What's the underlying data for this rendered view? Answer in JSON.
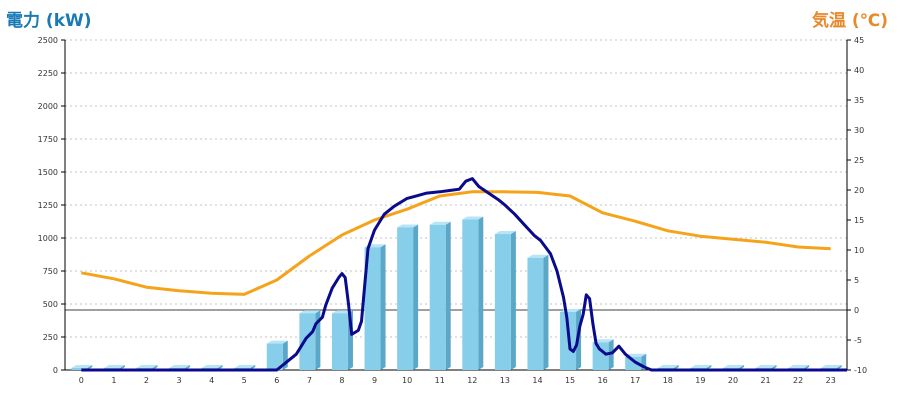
{
  "left_axis_title": "電力 (kW)",
  "right_axis_title": "気温 (℃)",
  "colors": {
    "left_title": "#1a7ab5",
    "right_title": "#e8892a",
    "bar_front": "#87ceeb",
    "bar_side": "#5aa7c8",
    "bar_top": "#b8e4f5",
    "power_line": "#0a0a8c",
    "temp_line": "#f5a31a",
    "grid": "#b0b0b0",
    "axis": "#000000"
  },
  "chart_data": {
    "type": "bar",
    "categories": [
      "0",
      "1",
      "2",
      "3",
      "4",
      "5",
      "6",
      "7",
      "8",
      "9",
      "10",
      "11",
      "12",
      "13",
      "14",
      "15",
      "16",
      "17",
      "18",
      "19",
      "20",
      "21",
      "22",
      "23"
    ],
    "ylim_left": [
      0,
      2500
    ],
    "yticks_left": [
      "0",
      "250",
      "500",
      "750",
      "1000",
      "1250",
      "1500",
      "1750",
      "2000",
      "2250",
      "2500"
    ],
    "ylim_right": [
      -10,
      45
    ],
    "yticks_right": [
      "-10",
      "-5",
      "0",
      "5",
      "10",
      "15",
      "20",
      "25",
      "30",
      "35",
      "40",
      "45"
    ],
    "grid": true,
    "bars": [
      0,
      0,
      0,
      0,
      0,
      0,
      200,
      430,
      430,
      930,
      1080,
      1100,
      1140,
      1030,
      850,
      440,
      210,
      100,
      0,
      0,
      0,
      0,
      0,
      0
    ],
    "power_line": {
      "x": [
        0,
        5.0,
        5.2,
        5.6,
        6.0,
        6.3,
        6.6,
        6.9,
        7.1,
        7.2,
        7.4,
        7.5,
        7.7,
        7.9,
        8.0,
        8.1,
        8.2,
        8.3,
        8.5,
        8.6,
        8.8,
        9.0,
        9.3,
        9.6,
        10.0,
        10.3,
        10.6,
        11.0,
        11.3,
        11.6,
        11.8,
        12.0,
        12.2,
        12.5,
        12.8,
        13.0,
        13.3,
        13.6,
        13.9,
        14.1,
        14.4,
        14.6,
        14.8,
        14.9,
        15.0,
        15.1,
        15.2,
        15.3,
        15.4,
        15.5,
        15.6,
        15.7,
        15.8,
        15.9,
        16.0,
        16.1,
        16.3,
        16.5,
        16.7,
        17.0,
        17.3,
        17.5,
        18.0,
        23.5
      ],
      "y": [
        0,
        0,
        0,
        0,
        0,
        60,
        120,
        240,
        290,
        350,
        400,
        490,
        620,
        700,
        730,
        700,
        500,
        270,
        300,
        370,
        920,
        1060,
        1180,
        1240,
        1300,
        1320,
        1340,
        1350,
        1360,
        1370,
        1430,
        1450,
        1390,
        1340,
        1290,
        1250,
        1180,
        1100,
        1020,
        980,
        880,
        750,
        550,
        400,
        160,
        140,
        190,
        330,
        420,
        570,
        540,
        350,
        200,
        160,
        140,
        120,
        130,
        180,
        120,
        60,
        20,
        0,
        0,
        0
      ]
    },
    "temperature_line": {
      "x": [
        0,
        1,
        2,
        3,
        4,
        5,
        6,
        7,
        8,
        9,
        10,
        11,
        12,
        13,
        14,
        15,
        16,
        17,
        18,
        19,
        20,
        21,
        22,
        23
      ],
      "y": [
        6.2,
        5.2,
        3.8,
        3.2,
        2.8,
        2.6,
        5.0,
        9.0,
        12.5,
        15.0,
        16.8,
        19.0,
        19.7,
        19.7,
        19.6,
        19.0,
        16.2,
        14.8,
        13.2,
        12.3,
        11.8,
        11.3,
        10.5,
        10.2
      ]
    }
  }
}
